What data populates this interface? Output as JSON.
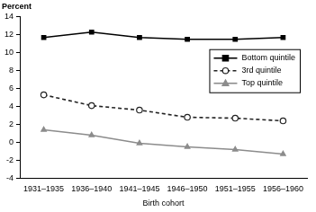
{
  "chart_data": {
    "type": "line",
    "y_label": "Percent",
    "x_label": "Birth cohort",
    "categories": [
      "1931–1935",
      "1936–1940",
      "1941–1945",
      "1946–1950",
      "1951–1955",
      "1956–1960"
    ],
    "series": [
      {
        "name": "Bottom quintile",
        "color": "#000000",
        "marker": "square",
        "line_style": "solid",
        "values": [
          11.7,
          12.3,
          11.7,
          11.5,
          11.5,
          11.7
        ]
      },
      {
        "name": "3rd quintile",
        "color": "#222222",
        "marker": "open_circle",
        "line_style": "dashed",
        "values": [
          5.3,
          4.1,
          3.6,
          2.8,
          2.7,
          2.4
        ]
      },
      {
        "name": "Top quintile",
        "color": "#8c8c8c",
        "marker": "triangle",
        "line_style": "solid",
        "values": [
          1.4,
          0.8,
          -0.1,
          -0.5,
          -0.8,
          -1.3
        ]
      }
    ],
    "ylim": [
      -4,
      14
    ],
    "yticks": [
      -4,
      -2,
      0,
      2,
      4,
      6,
      8,
      10,
      12,
      14
    ],
    "grid": false,
    "legend": "upper right"
  }
}
